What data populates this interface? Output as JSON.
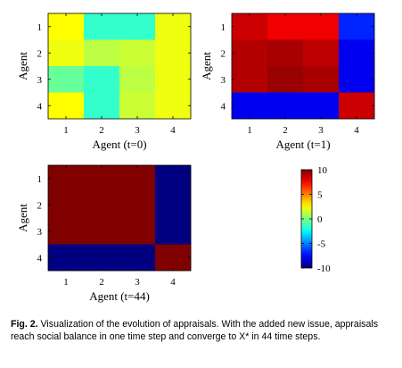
{
  "chart_data": [
    {
      "type": "heatmap",
      "xlabel": "Agent (t=0)",
      "ylabel": "Agent",
      "x_ticks": [
        "1",
        "2",
        "3",
        "4"
      ],
      "y_ticks": [
        "1",
        "2",
        "3",
        "4"
      ],
      "zlim": [
        -10,
        10
      ],
      "values": [
        [
          2.5,
          -1.5,
          -1.5,
          2.2
        ],
        [
          2.2,
          1.2,
          1.5,
          2.2
        ],
        [
          -0.5,
          -1.5,
          1.2,
          2.2
        ],
        [
          2.5,
          -1.5,
          1.5,
          2.2
        ]
      ]
    },
    {
      "type": "heatmap",
      "xlabel": "Agent (t=1)",
      "ylabel": "Agent",
      "x_ticks": [
        "1",
        "2",
        "3",
        "4"
      ],
      "y_ticks": [
        "1",
        "2",
        "3",
        "4"
      ],
      "zlim": [
        -10,
        10
      ],
      "values": [
        [
          8.5,
          7.8,
          7.8,
          -6.8
        ],
        [
          9.0,
          9.2,
          8.8,
          -7.8
        ],
        [
          9.0,
          9.5,
          9.2,
          -7.8
        ],
        [
          -7.8,
          -7.8,
          -7.8,
          8.5
        ]
      ]
    },
    {
      "type": "heatmap",
      "xlabel": "Agent (t=44)",
      "ylabel": "Agent",
      "x_ticks": [
        "1",
        "2",
        "3",
        "4"
      ],
      "y_ticks": [
        "1",
        "2",
        "3",
        "4"
      ],
      "zlim": [
        -10,
        10
      ],
      "values": [
        [
          10,
          10,
          10,
          -10
        ],
        [
          10,
          10,
          10,
          -10
        ],
        [
          10,
          10,
          10,
          -10
        ],
        [
          -10,
          -10,
          -10,
          10
        ]
      ]
    }
  ],
  "colorbar": {
    "range": [
      -10,
      10
    ],
    "ticks": [
      "10",
      "5",
      "0",
      "-5",
      "-10"
    ],
    "tick_values": [
      10,
      5,
      0,
      -5,
      -10
    ]
  },
  "caption": {
    "label": "Fig. 2.",
    "text": " Visualization of the evolution of appraisals. With the added new issue, appraisals reach social balance in one time step and converge to X* in 44 time steps."
  }
}
